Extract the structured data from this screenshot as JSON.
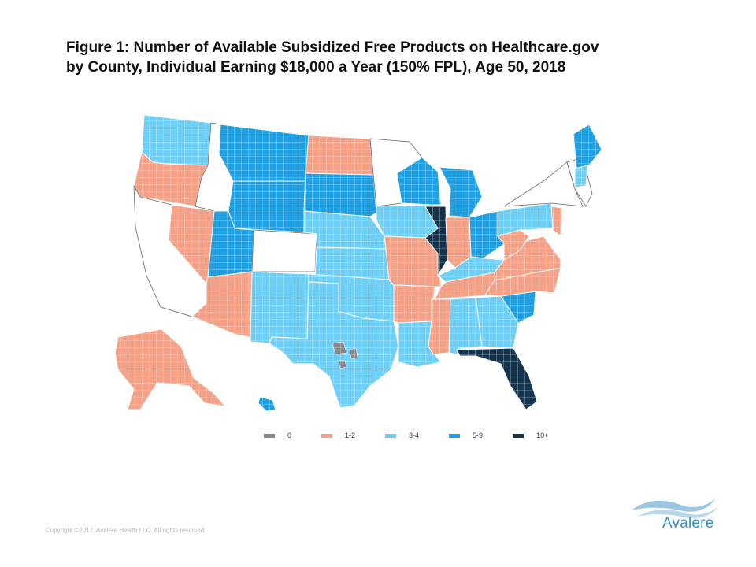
{
  "title": {
    "line1": "Figure 1: Number of Available Subsidized Free Products on Healthcare.gov",
    "line2": "by County, Individual Earning $18,000 a Year (150% FPL), Age 50, 2018"
  },
  "legend": [
    {
      "label": "0",
      "color": "#888888"
    },
    {
      "label": "1-2",
      "color": "#f4a187"
    },
    {
      "label": "3-4",
      "color": "#6dcff6"
    },
    {
      "label": "5-9",
      "color": "#1fa0e3"
    },
    {
      "label": "10+",
      "color": "#14334d"
    }
  ],
  "map_regions": [
    {
      "name": "washington",
      "category": "3-4"
    },
    {
      "name": "oregon",
      "category": "1-2"
    },
    {
      "name": "california",
      "category": "none"
    },
    {
      "name": "nevada",
      "category": "1-2"
    },
    {
      "name": "idaho",
      "category": "none"
    },
    {
      "name": "montana",
      "category": "5-9"
    },
    {
      "name": "wyoming",
      "category": "5-9"
    },
    {
      "name": "utah",
      "category": "5-9"
    },
    {
      "name": "arizona",
      "category": "1-2"
    },
    {
      "name": "colorado",
      "category": "none"
    },
    {
      "name": "new-mexico",
      "category": "3-4"
    },
    {
      "name": "north-dakota",
      "category": "1-2"
    },
    {
      "name": "south-dakota",
      "category": "5-9"
    },
    {
      "name": "nebraska",
      "category": "3-4"
    },
    {
      "name": "kansas",
      "category": "3-4"
    },
    {
      "name": "oklahoma",
      "category": "3-4"
    },
    {
      "name": "texas",
      "category": "3-4"
    },
    {
      "name": "minnesota",
      "category": "none"
    },
    {
      "name": "iowa",
      "category": "3-4"
    },
    {
      "name": "missouri",
      "category": "1-2"
    },
    {
      "name": "arkansas",
      "category": "1-2"
    },
    {
      "name": "louisiana",
      "category": "3-4"
    },
    {
      "name": "wisconsin",
      "category": "5-9"
    },
    {
      "name": "illinois",
      "category": "10+"
    },
    {
      "name": "michigan",
      "category": "5-9"
    },
    {
      "name": "indiana",
      "category": "1-2"
    },
    {
      "name": "ohio",
      "category": "5-9"
    },
    {
      "name": "kentucky",
      "category": "3-4"
    },
    {
      "name": "tennessee",
      "category": "1-2"
    },
    {
      "name": "mississippi",
      "category": "1-2"
    },
    {
      "name": "alabama",
      "category": "3-4"
    },
    {
      "name": "georgia",
      "category": "3-4"
    },
    {
      "name": "florida",
      "category": "10+"
    },
    {
      "name": "south-carolina",
      "category": "5-9"
    },
    {
      "name": "north-carolina",
      "category": "1-2"
    },
    {
      "name": "virginia",
      "category": "1-2"
    },
    {
      "name": "west-virginia",
      "category": "1-2"
    },
    {
      "name": "pennsylvania",
      "category": "3-4"
    },
    {
      "name": "new-york",
      "category": "none"
    },
    {
      "name": "new-england",
      "category": "none"
    },
    {
      "name": "maine",
      "category": "5-9"
    },
    {
      "name": "new-hampshire",
      "category": "3-4"
    },
    {
      "name": "new-jersey",
      "category": "1-2"
    },
    {
      "name": "alaska",
      "category": "1-2"
    },
    {
      "name": "hawaii",
      "category": "5-9"
    }
  ],
  "copyright": "Copyright ©2017. Avalere Health LLC. All rights reserved.",
  "logo_text": "Avalere"
}
